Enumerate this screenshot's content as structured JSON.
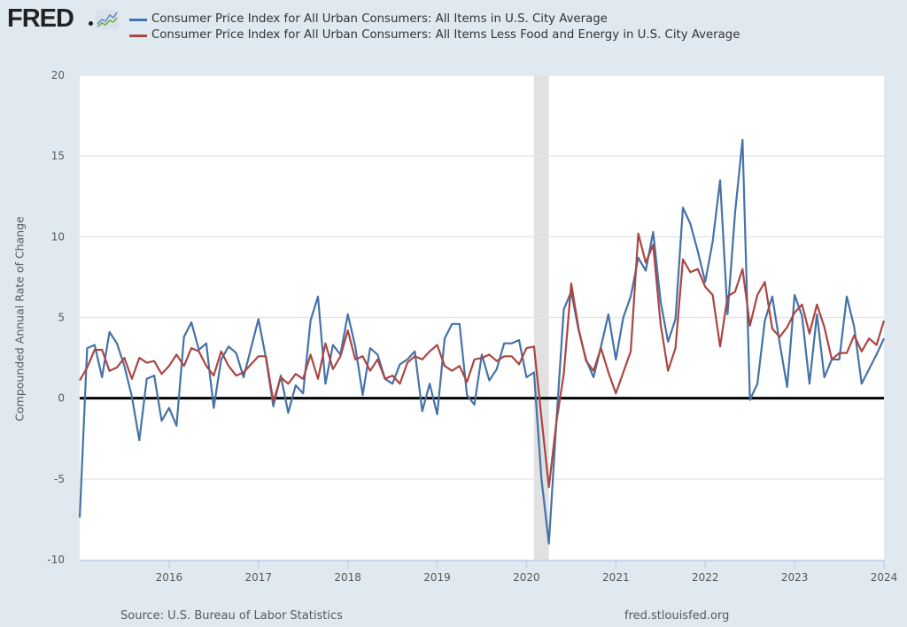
{
  "header": {
    "logo_text": "FRED",
    "logo_icon": "line-chart-icon"
  },
  "legend": [
    {
      "label": "Consumer Price Index for All Urban Consumers: All Items in U.S. City Average",
      "color": "#4572a7"
    },
    {
      "label": "Consumer Price Index for All Urban Consumers: All Items Less Food and Energy in U.S. City Average",
      "color": "#aa4643"
    }
  ],
  "footer": {
    "source": "Source: U.S. Bureau of Labor Statistics",
    "site": "fred.stlouisfed.org"
  },
  "chart_data": {
    "type": "line",
    "title": "",
    "xlabel": "",
    "ylabel": "Compounded Annual Rate of Change",
    "ylim": [
      -10,
      20
    ],
    "yticks": [
      -10,
      -5,
      0,
      5,
      10,
      15,
      20
    ],
    "xlim": [
      "2015-01",
      "2024-01"
    ],
    "xticks": [
      "2016",
      "2017",
      "2018",
      "2019",
      "2020",
      "2021",
      "2022",
      "2023",
      "2024"
    ],
    "grid": true,
    "zero_line": true,
    "legend_position": "top",
    "recession_shading": {
      "start": "2020-02",
      "end": "2020-04",
      "color": "#e1e1e1"
    },
    "frequency": "monthly",
    "x_start": "2015-01",
    "series": [
      {
        "name": "Consumer Price Index for All Urban Consumers: All Items in U.S. City Average",
        "color": "#4572a7",
        "values": [
          -7.4,
          3.1,
          3.3,
          1.3,
          4.1,
          3.4,
          2.0,
          0.1,
          -2.6,
          1.2,
          1.4,
          -1.4,
          -0.6,
          -1.7,
          3.8,
          4.7,
          3.0,
          3.4,
          -0.6,
          2.4,
          3.2,
          2.8,
          1.3,
          3.1,
          4.9,
          2.5,
          -0.5,
          1.4,
          -0.9,
          0.8,
          0.3,
          4.8,
          6.3,
          0.9,
          3.3,
          2.7,
          5.2,
          3.2,
          0.2,
          3.1,
          2.7,
          1.2,
          0.9,
          2.1,
          2.4,
          2.9,
          -0.8,
          0.9,
          -1.0,
          3.7,
          4.6,
          4.6,
          0.2,
          -0.4,
          2.7,
          1.1,
          1.8,
          3.4,
          3.4,
          3.6,
          1.3,
          1.6,
          -5.0,
          -9.0,
          -1.5,
          5.5,
          6.6,
          4.2,
          2.4,
          1.3,
          3.2,
          5.2,
          2.4,
          5.0,
          6.3,
          8.7,
          7.9,
          10.3,
          6.0,
          3.5,
          4.9,
          11.8,
          10.8,
          9.1,
          7.2,
          9.7,
          13.5,
          5.2,
          11.5,
          16.0,
          -0.1,
          0.9,
          4.8,
          6.3,
          3.4,
          0.7,
          6.4,
          5.1,
          0.9,
          5.2,
          1.3,
          2.4,
          2.4,
          6.3,
          4.4,
          0.9,
          1.8,
          2.7,
          3.7
        ]
      },
      {
        "name": "Consumer Price Index for All Urban Consumers: All Items Less Food and Energy in U.S. City Average",
        "color": "#aa4643",
        "values": [
          1.1,
          1.9,
          3.0,
          3.0,
          1.7,
          1.9,
          2.5,
          1.2,
          2.5,
          2.2,
          2.3,
          1.5,
          2.0,
          2.7,
          2.0,
          3.1,
          2.9,
          2.0,
          1.4,
          2.9,
          2.0,
          1.4,
          1.6,
          2.1,
          2.6,
          2.6,
          -0.2,
          1.3,
          0.9,
          1.5,
          1.2,
          2.7,
          1.2,
          3.4,
          1.8,
          2.6,
          4.2,
          2.4,
          2.6,
          1.7,
          2.4,
          1.2,
          1.4,
          0.9,
          2.2,
          2.6,
          2.4,
          2.9,
          3.3,
          2.0,
          1.7,
          2.0,
          1.0,
          2.4,
          2.5,
          2.7,
          2.3,
          2.6,
          2.6,
          2.1,
          3.1,
          3.2,
          -1.2,
          -5.5,
          -1.5,
          1.5,
          7.1,
          4.3,
          2.3,
          1.7,
          3.1,
          1.6,
          0.3,
          1.6,
          2.9,
          10.2,
          8.4,
          9.5,
          4.6,
          1.7,
          3.1,
          8.6,
          7.8,
          8.0,
          6.9,
          6.4,
          3.2,
          6.3,
          6.6,
          8.0,
          4.5,
          6.4,
          7.2,
          4.3,
          3.8,
          4.4,
          5.3,
          5.8,
          4.0,
          5.8,
          4.4,
          2.4,
          2.8,
          2.8,
          3.9,
          2.9,
          3.7,
          3.3,
          4.8
        ]
      }
    ]
  }
}
